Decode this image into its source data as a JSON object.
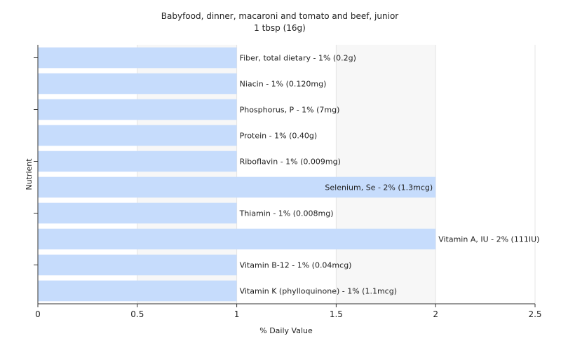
{
  "chart_data": {
    "type": "bar",
    "orientation": "horizontal",
    "title": "Babyfood, dinner, macaroni and tomato and beef, junior",
    "subtitle": "1 tbsp (16g)",
    "xlabel": "% Daily Value",
    "ylabel": "Nutrient",
    "xlim": [
      0,
      2.5
    ],
    "xticks": [
      "0",
      "0.5",
      "1",
      "1.5",
      "2",
      "2.5"
    ],
    "xtick_values": [
      0,
      0.5,
      1,
      1.5,
      2,
      2.5
    ],
    "grid": true,
    "bar_color": "#c6dcfc",
    "categories": [
      "Fiber, total dietary",
      "Niacin",
      "Phosphorus, P",
      "Protein",
      "Riboflavin",
      "Selenium, Se",
      "Thiamin",
      "Vitamin A, IU",
      "Vitamin B-12",
      "Vitamin K (phylloquinone)"
    ],
    "values": [
      1,
      1,
      1,
      1,
      1,
      2,
      1,
      2,
      1,
      1
    ],
    "labels": [
      "Fiber, total dietary - 1% (0.2g)",
      "Niacin - 1% (0.120mg)",
      "Phosphorus, P - 1% (7mg)",
      "Protein - 1% (0.40g)",
      "Riboflavin - 1% (0.009mg)",
      "Selenium, Se - 2% (1.3mcg)",
      "Thiamin - 1% (0.008mg)",
      "Vitamin A, IU - 2% (111IU)",
      "Vitamin B-12 - 1% (0.04mcg)",
      "Vitamin K (phylloquinone) - 1% (1.1mcg)"
    ]
  }
}
